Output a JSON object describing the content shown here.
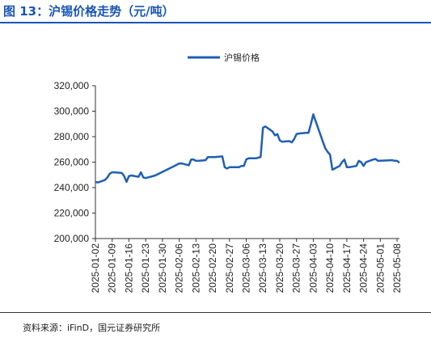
{
  "header": {
    "title": "图 13：沪锡价格走势（元/吨）"
  },
  "footer": {
    "source": "资料来源：iFinD，国元证券研究所"
  },
  "colors": {
    "brand": "#1a56b4",
    "series": "#1f5fb6"
  },
  "chart_data": {
    "type": "line",
    "title": "",
    "xlabel": "",
    "ylabel": "",
    "ylim": [
      200000,
      320000
    ],
    "yticks": [
      "200,000",
      "220,000",
      "240,000",
      "260,000",
      "280,000",
      "300,000",
      "320,000"
    ],
    "xticks": [
      "2025-01-02",
      "2025-01-09",
      "2025-01-16",
      "2025-01-23",
      "2025-01-30",
      "2025-02-06",
      "2025-02-13",
      "2025-02-20",
      "2025-02-27",
      "2025-03-06",
      "2025-03-13",
      "2025-03-20",
      "2025-03-27",
      "2025-04-03",
      "2025-04-10",
      "2025-04-17",
      "2025-04-24",
      "2025-05-01",
      "2025-05-08"
    ],
    "grid": false,
    "legend_position": "top",
    "series": [
      {
        "name": "沪锡价格",
        "x": [
          "2025-01-02",
          "2025-01-03",
          "2025-01-06",
          "2025-01-07",
          "2025-01-08",
          "2025-01-09",
          "2025-01-10",
          "2025-01-13",
          "2025-01-14",
          "2025-01-15",
          "2025-01-16",
          "2025-01-17",
          "2025-01-20",
          "2025-01-21",
          "2025-01-22",
          "2025-01-23",
          "2025-01-24",
          "2025-01-27",
          "2025-02-05",
          "2025-02-06",
          "2025-02-07",
          "2025-02-10",
          "2025-02-11",
          "2025-02-12",
          "2025-02-13",
          "2025-02-14",
          "2025-02-17",
          "2025-02-18",
          "2025-02-19",
          "2025-02-20",
          "2025-02-21",
          "2025-02-24",
          "2025-02-25",
          "2025-02-26",
          "2025-02-27",
          "2025-02-28",
          "2025-03-03",
          "2025-03-04",
          "2025-03-05",
          "2025-03-06",
          "2025-03-07",
          "2025-03-10",
          "2025-03-11",
          "2025-03-12",
          "2025-03-13",
          "2025-03-14",
          "2025-03-17",
          "2025-03-18",
          "2025-03-19",
          "2025-03-20",
          "2025-03-21",
          "2025-03-24",
          "2025-03-25",
          "2025-03-26",
          "2025-03-27",
          "2025-03-28",
          "2025-03-31",
          "2025-04-01",
          "2025-04-02",
          "2025-04-03",
          "2025-04-07",
          "2025-04-08",
          "2025-04-09",
          "2025-04-10",
          "2025-04-11",
          "2025-04-14",
          "2025-04-15",
          "2025-04-16",
          "2025-04-17",
          "2025-04-18",
          "2025-04-21",
          "2025-04-22",
          "2025-04-23",
          "2025-04-24",
          "2025-04-25",
          "2025-04-28",
          "2025-04-29",
          "2025-04-30",
          "2025-05-06",
          "2025-05-07",
          "2025-05-08",
          "2025-05-09"
        ],
        "values": [
          244500,
          244000,
          246000,
          248000,
          251000,
          252000,
          252000,
          251500,
          249000,
          244500,
          249000,
          249500,
          248500,
          252000,
          248000,
          247500,
          248000,
          249500,
          258000,
          259000,
          259000,
          257500,
          262000,
          262000,
          261000,
          261000,
          261500,
          264000,
          264000,
          264000,
          264000,
          264500,
          256000,
          255000,
          256000,
          256000,
          256000,
          257000,
          257000,
          262000,
          263000,
          263000,
          263500,
          264000,
          287000,
          288000,
          284000,
          281000,
          282000,
          277000,
          276000,
          276500,
          275500,
          278000,
          282000,
          282500,
          283000,
          283000,
          290000,
          297500,
          276000,
          271000,
          268000,
          266000,
          254000,
          257000,
          260000,
          262000,
          256000,
          256000,
          257000,
          261000,
          260000,
          257000,
          260000,
          262000,
          262500,
          261000,
          261500,
          261000,
          261000,
          259500
        ]
      }
    ]
  }
}
